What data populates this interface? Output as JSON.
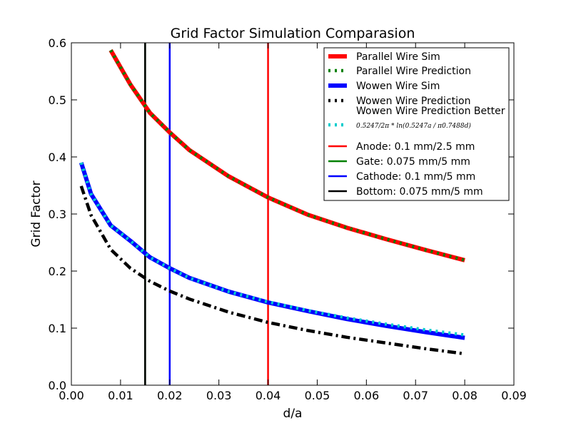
{
  "chart_data": {
    "type": "line",
    "title": "Grid Factor Simulation Comparasion",
    "xlabel": "d/a",
    "ylabel": "Grid Factor",
    "xlim": [
      0.0,
      0.09
    ],
    "ylim": [
      0.0,
      0.6
    ],
    "xticks": [
      0.0,
      0.01,
      0.02,
      0.03,
      0.04,
      0.05,
      0.06,
      0.07,
      0.08,
      0.09
    ],
    "xtick_labels": [
      "0.00",
      "0.01",
      "0.02",
      "0.03",
      "0.04",
      "0.05",
      "0.06",
      "0.07",
      "0.08",
      "0.09"
    ],
    "yticks": [
      0.0,
      0.1,
      0.2,
      0.3,
      0.4,
      0.5,
      0.6
    ],
    "ytick_labels": [
      "0.0",
      "0.1",
      "0.2",
      "0.3",
      "0.4",
      "0.5",
      "0.6"
    ],
    "grid": false,
    "legend_position": "top-right",
    "series": [
      {
        "name": "Parallel Wire Sim",
        "color": "#ff0000",
        "style": "solid-thick",
        "x": [
          0.008,
          0.012,
          0.016,
          0.02,
          0.024,
          0.032,
          0.04,
          0.048,
          0.056,
          0.064,
          0.072,
          0.08
        ],
        "y": [
          0.587,
          0.527,
          0.477,
          0.443,
          0.412,
          0.366,
          0.329,
          0.299,
          0.276,
          0.256,
          0.237,
          0.219
        ]
      },
      {
        "name": "Parallel Wire Prediction",
        "color": "#008000",
        "style": "dotted-thick",
        "x": [
          0.008,
          0.012,
          0.016,
          0.02,
          0.024,
          0.032,
          0.04,
          0.048,
          0.056,
          0.064,
          0.072,
          0.08
        ],
        "y": [
          0.587,
          0.527,
          0.477,
          0.443,
          0.412,
          0.366,
          0.329,
          0.299,
          0.276,
          0.256,
          0.237,
          0.219
        ]
      },
      {
        "name": "Wowen Wire Sim",
        "color": "#0000ff",
        "style": "solid-thick",
        "x": [
          0.002,
          0.004,
          0.008,
          0.012,
          0.016,
          0.02,
          0.024,
          0.032,
          0.04,
          0.048,
          0.056,
          0.064,
          0.072,
          0.08
        ],
        "y": [
          0.39,
          0.335,
          0.28,
          0.253,
          0.224,
          0.205,
          0.188,
          0.164,
          0.145,
          0.13,
          0.116,
          0.104,
          0.093,
          0.083
        ]
      },
      {
        "name": "Wowen Wire Prediction",
        "color": "#000000",
        "style": "dashdot-thick",
        "x": [
          0.002,
          0.004,
          0.008,
          0.012,
          0.016,
          0.02,
          0.024,
          0.032,
          0.04,
          0.048,
          0.056,
          0.064,
          0.072,
          0.08
        ],
        "y": [
          0.349,
          0.298,
          0.238,
          0.205,
          0.182,
          0.165,
          0.151,
          0.128,
          0.11,
          0.096,
          0.084,
          0.074,
          0.064,
          0.055
        ]
      },
      {
        "name": "Wowen Wire Prediction Better",
        "color": "#00cccc",
        "style": "dotted-thick",
        "x": [
          0.002,
          0.004,
          0.008,
          0.012,
          0.016,
          0.02,
          0.024,
          0.032,
          0.04,
          0.048,
          0.056,
          0.064,
          0.072,
          0.08
        ],
        "y": [
          0.39,
          0.335,
          0.28,
          0.253,
          0.224,
          0.205,
          0.188,
          0.164,
          0.146,
          0.131,
          0.118,
          0.107,
          0.097,
          0.088
        ]
      }
    ],
    "vlines": [
      {
        "name": "Anode: 0.1 mm/2.5 mm",
        "x": 0.04,
        "color": "#ff0000"
      },
      {
        "name": "Gate: 0.075 mm/5 mm",
        "x": 0.015,
        "color": "#008000"
      },
      {
        "name": "Cathode: 0.1 mm/5 mm",
        "x": 0.02,
        "color": "#0000ff"
      },
      {
        "name": "Bottom: 0.075 mm/5 mm",
        "x": 0.015,
        "color": "#000000"
      }
    ],
    "legend_formula": "0.5247/2π * ln(0.5247a / π0.7488d)"
  }
}
